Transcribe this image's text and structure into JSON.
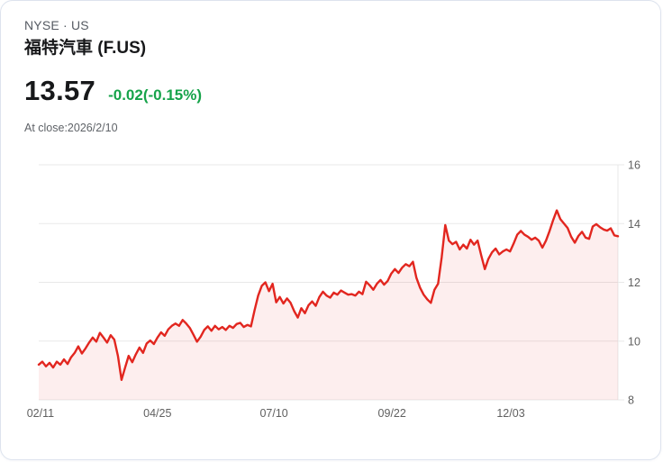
{
  "header": {
    "exchange_line": "NYSE · US",
    "title": "福特汽車 (F.US)",
    "price": "13.57",
    "change": "-0.02(-0.15%)",
    "close_line": "At close:2026/2/10"
  },
  "colors": {
    "line_red": "#e2261f",
    "area_fill": "rgba(224,40,34,0.08)",
    "change_green": "#16a34a",
    "grid": "#e9e9e9",
    "axis_text": "#606060"
  },
  "chart_data": {
    "type": "area",
    "title": "",
    "xlabel": "",
    "ylabel": "",
    "ylim": [
      8,
      16
    ],
    "yticks": [
      8,
      10,
      12,
      14,
      16
    ],
    "grid": "horizontal",
    "legend": "none",
    "x_ticks": [
      {
        "label": "02/11",
        "pos": 0.003
      },
      {
        "label": "04/25",
        "pos": 0.205
      },
      {
        "label": "07/10",
        "pos": 0.406
      },
      {
        "label": "09/22",
        "pos": 0.61
      },
      {
        "label": "12/03",
        "pos": 0.815
      }
    ],
    "values": [
      9.2,
      9.3,
      9.14,
      9.26,
      9.1,
      9.3,
      9.2,
      9.38,
      9.22,
      9.45,
      9.6,
      9.82,
      9.58,
      9.75,
      9.95,
      10.12,
      9.98,
      10.28,
      10.12,
      9.95,
      10.2,
      10.05,
      9.5,
      8.68,
      9.1,
      9.5,
      9.28,
      9.55,
      9.78,
      9.6,
      9.92,
      10.02,
      9.9,
      10.12,
      10.3,
      10.18,
      10.4,
      10.52,
      10.6,
      10.52,
      10.72,
      10.6,
      10.45,
      10.22,
      9.98,
      10.15,
      10.38,
      10.5,
      10.35,
      10.52,
      10.4,
      10.48,
      10.38,
      10.52,
      10.45,
      10.58,
      10.62,
      10.48,
      10.55,
      10.5,
      11.05,
      11.55,
      11.88,
      12.0,
      11.7,
      11.95,
      11.32,
      11.5,
      11.28,
      11.45,
      11.3,
      11.02,
      10.8,
      11.12,
      10.95,
      11.22,
      11.35,
      11.2,
      11.5,
      11.68,
      11.55,
      11.48,
      11.65,
      11.58,
      11.72,
      11.65,
      11.58,
      11.6,
      11.55,
      11.68,
      11.6,
      12.02,
      11.9,
      11.75,
      11.95,
      12.08,
      11.92,
      12.05,
      12.3,
      12.45,
      12.32,
      12.5,
      12.62,
      12.55,
      12.7,
      12.15,
      11.82,
      11.58,
      11.42,
      11.3,
      11.75,
      11.95,
      12.85,
      13.95,
      13.42,
      13.3,
      13.38,
      13.12,
      13.28,
      13.15,
      13.45,
      13.28,
      13.42,
      12.92,
      12.45,
      12.8,
      13.02,
      13.15,
      12.95,
      13.05,
      13.12,
      13.05,
      13.32,
      13.62,
      13.75,
      13.62,
      13.55,
      13.45,
      13.52,
      13.42,
      13.18,
      13.42,
      13.75,
      14.12,
      14.45,
      14.15,
      14.0,
      13.85,
      13.55,
      13.35,
      13.58,
      13.72,
      13.52,
      13.48,
      13.9,
      13.98,
      13.88,
      13.8,
      13.76,
      13.84,
      13.6,
      13.57
    ]
  }
}
